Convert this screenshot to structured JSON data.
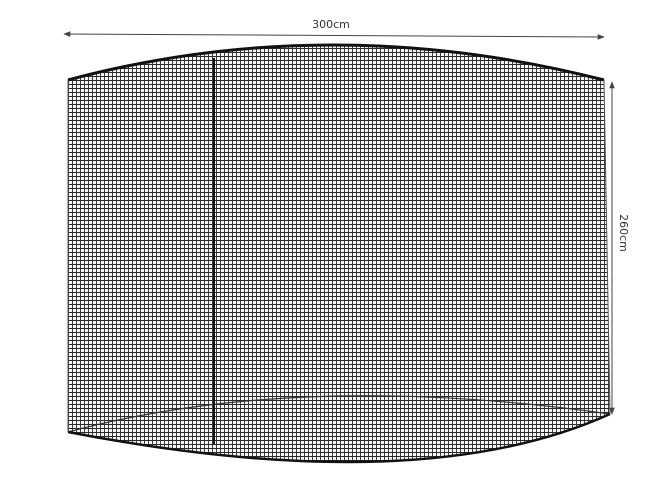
{
  "dimensions": {
    "width_label": "300cm",
    "height_label": "260cm"
  },
  "colors": {
    "mesh": "#222222",
    "frame": "#111111",
    "arrow": "#444444"
  }
}
